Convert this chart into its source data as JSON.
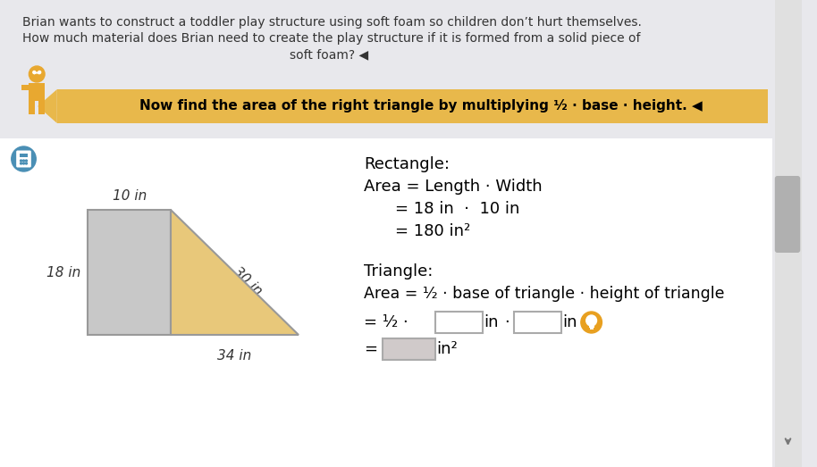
{
  "bg_color": "#e8e8ec",
  "white_bg": "#ffffff",
  "title_text1": "Brian wants to construct a toddler play structure using soft foam so children don’t hurt themselves.",
  "title_text2": "How much material does Brian need to create the play structure if it is formed from a solid piece of",
  "title_text3": "soft foam? ◀︎",
  "banner_text": "Now find the area of the right triangle by multiplying ¹⁄₂ · base · height. ◀︎",
  "banner_color": "#E8B84B",
  "banner_shadow": "#C49A30",
  "rect_label_top": "10 in",
  "rect_label_left": "18 in",
  "tri_label_hyp": "30 in",
  "tri_label_base": "34 in",
  "rect_color": "#c8c8c8",
  "rect_border": "#999999",
  "tri_color": "#E8C87A",
  "tri_border": "#999999",
  "section_rectangle_title": "Rectangle:",
  "rect_formula1": "Area = Length · Width",
  "rect_formula2": "= 18 in  ·  10 in",
  "rect_formula3": "= 180 in²",
  "section_triangle_title": "Triangle:",
  "tri_formula1": "Area = ¹⁄₂ · base of triangle · height of triangle",
  "tri_formula2": "= ¹⁄₂ ·",
  "tri_in1": "in",
  "tri_dot": "·",
  "tri_in2": "in",
  "tri_equals": "=",
  "tri_in2_sq": "in²",
  "text_color": "#333333",
  "hint_color": "#E8A020",
  "box_fill": "#ffffff",
  "box_fill3": "#d0caca",
  "box_border": "#aaaaaa",
  "scroll_bg": "#e0e0e0",
  "scroll_thumb": "#b0b0b0",
  "calc_icon_color": "#4a8fb5",
  "char_body": "#E8A830",
  "char_leg": "#5a4030"
}
